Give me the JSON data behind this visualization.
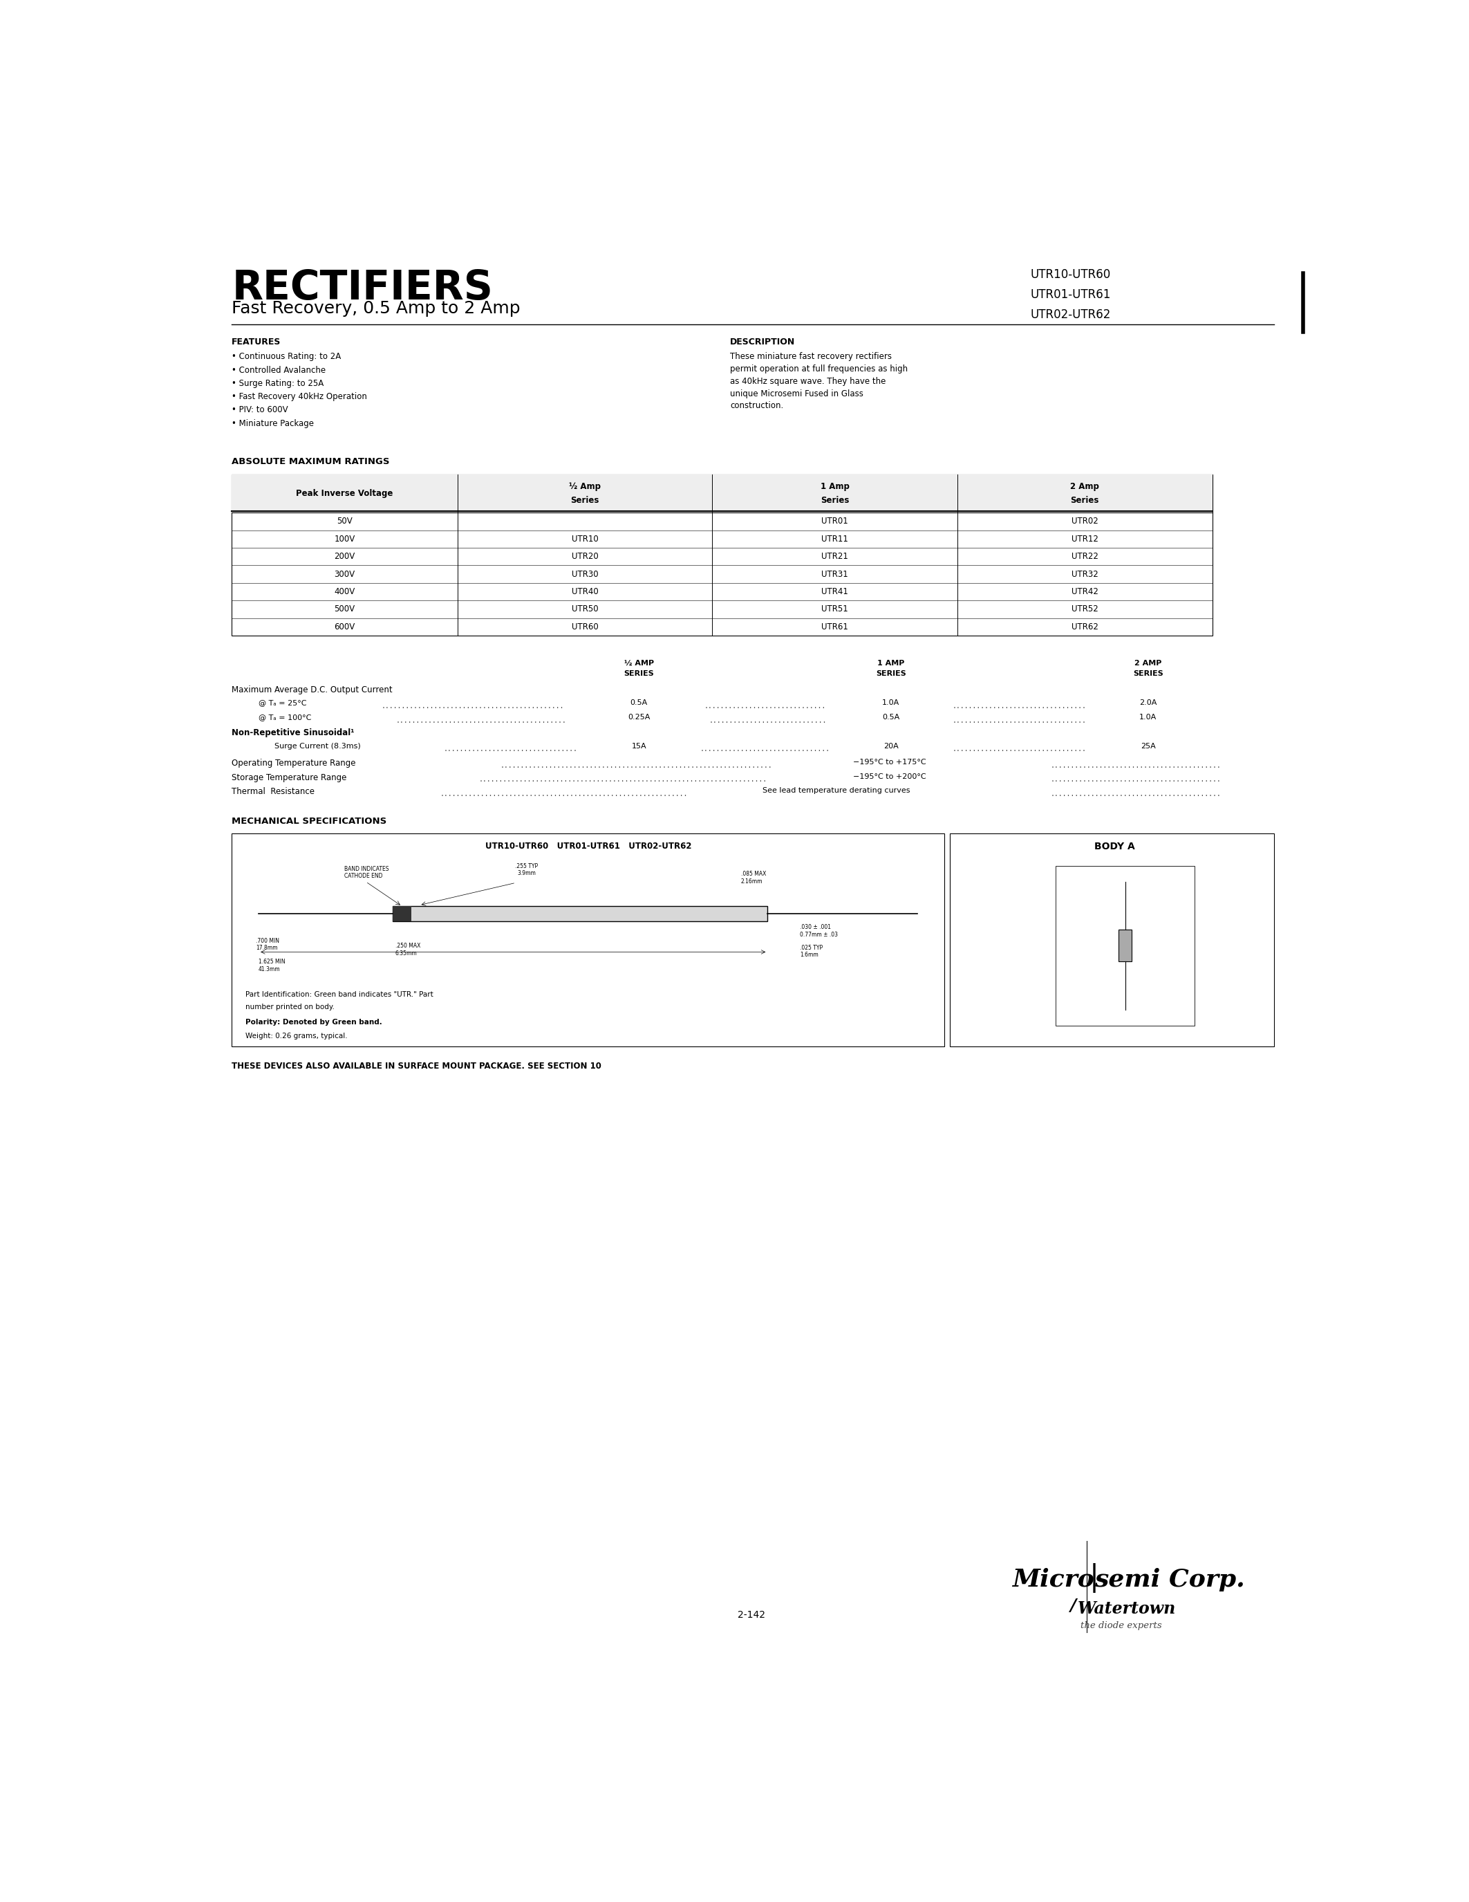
{
  "title": "RECTIFIERS",
  "subtitle": "Fast Recovery, 0.5 Amp to 2 Amp",
  "part_numbers_right": [
    "UTR10-UTR60",
    "UTR01-UTR61",
    "UTR02-UTR62"
  ],
  "features_title": "FEATURES",
  "features": [
    "Continuous Rating: to 2A",
    "Controlled Avalanche",
    "Surge Rating: to 25A",
    "Fast Recovery 40kHz Operation",
    "PIV: to 600V",
    "Miniature Package"
  ],
  "description_title": "DESCRIPTION",
  "description": [
    "These miniature fast recovery rectifiers",
    "permit operation at full frequencies as high",
    "as 40kHz square wave. They have the",
    "unique Microsemi Fused in Glass",
    "construction."
  ],
  "abs_max_title": "ABSOLUTE MAXIMUM RATINGS",
  "table_header": [
    "Peak Inverse Voltage",
    "½ Amp\nSeries",
    "1 Amp\nSeries",
    "2 Amp\nSeries"
  ],
  "table_rows": [
    [
      "50V",
      "",
      "UTR01",
      "UTR02"
    ],
    [
      "100V",
      "UTR10",
      "UTR11",
      "UTR12"
    ],
    [
      "200V",
      "UTR20",
      "UTR21",
      "UTR22"
    ],
    [
      "300V",
      "UTR30",
      "UTR31",
      "UTR32"
    ],
    [
      "400V",
      "UTR40",
      "UTR41",
      "UTR42"
    ],
    [
      "500V",
      "UTR50",
      "UTR51",
      "UTR52"
    ],
    [
      "600V",
      "UTR60",
      "UTR61",
      "UTR62"
    ]
  ],
  "rat_label": "Maximum Average D.C. Output Current",
  "rat_headers": [
    "½ AMP\nSERIES",
    "1 AMP\nSERIES",
    "2 AMP\nSERIES"
  ],
  "rat_row1_label": "@ Tₐ = 25°C",
  "rat_row1_vals": [
    "0.5A",
    "1.0A",
    "2.0A"
  ],
  "rat_row2_label": "@ Tₐ = 100°C",
  "rat_row2_vals": [
    "0.25A",
    "0.5A",
    "1.0A"
  ],
  "non_rep": "Non-Repetitive Sinusoidal¹",
  "surge_label": "Surge Current (8.3ms)",
  "surge_vals": [
    "15A",
    "20A",
    "25A"
  ],
  "op_temp_label": "Operating Temperature Range",
  "op_temp_val": "−195°C to +175°C",
  "stor_temp_label": "Storage Temperature Range",
  "stor_temp_val": "−195°C to +200°C",
  "thermal_label": "Thermal  Resistance",
  "thermal_val": "See lead temperature derating curves",
  "mech_title": "MECHANICAL SPECIFICATIONS",
  "mech_left_title": "UTR10-UTR60   UTR01-UTR61   UTR02-UTR62",
  "mech_right_title": "BODY A",
  "part_id1": "Part Identification: Green band indicates \"UTR.\" Part",
  "part_id2": "number printed on body.",
  "polarity": "Polarity: Denoted by Green band.",
  "weight": "Weight: 0.26 grams, typical.",
  "surface_note": "THESE DEVICES ALSO AVAILABLE IN SURFACE MOUNT PACKAGE. SEE SECTION 10",
  "footer_page": "2-142",
  "bg_color": "#ffffff",
  "text_color": "#000000"
}
